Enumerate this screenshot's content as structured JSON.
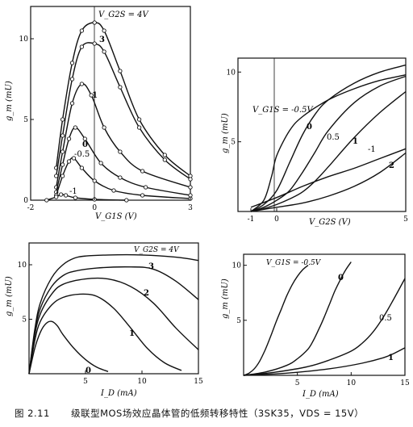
{
  "caption": {
    "figure_no": "图 2.11",
    "text": "级联型MOS场效应晶体管的低频转移特性（3SK35，VDS = 15V）"
  },
  "chart_data": [
    {
      "type": "line",
      "panel": "top-left",
      "xlabel": "V_G1S (V)",
      "ylabel": "g_m (mU)",
      "xlim": [
        -2,
        3
      ],
      "ylim": [
        0,
        12
      ],
      "xticks": [
        "-2",
        "0",
        "3"
      ],
      "yticks": [
        "0",
        "5",
        "10"
      ],
      "vline_x": 0,
      "series": [
        {
          "name": "V_G2S = 4V",
          "points": [
            [
              -1.2,
              2
            ],
            [
              -1.0,
              5
            ],
            [
              -0.7,
              8.5
            ],
            [
              -0.4,
              10.5
            ],
            [
              0,
              11
            ],
            [
              0.3,
              10.5
            ],
            [
              0.8,
              8
            ],
            [
              1.4,
              5
            ],
            [
              2.2,
              2.8
            ],
            [
              3,
              1.5
            ]
          ]
        },
        {
          "name": "3",
          "points": [
            [
              -1.2,
              1.5
            ],
            [
              -1.0,
              4
            ],
            [
              -0.7,
              7.5
            ],
            [
              -0.4,
              9.5
            ],
            [
              0,
              9.7
            ],
            [
              0.3,
              9.2
            ],
            [
              0.8,
              7
            ],
            [
              1.4,
              4.5
            ],
            [
              2.2,
              2.5
            ],
            [
              3,
              1.3
            ]
          ]
        },
        {
          "name": "1",
          "points": [
            [
              -1.2,
              0.8
            ],
            [
              -1.0,
              3
            ],
            [
              -0.7,
              6
            ],
            [
              -0.4,
              7.2
            ],
            [
              -0.1,
              6.5
            ],
            [
              0.3,
              4.5
            ],
            [
              0.8,
              3
            ],
            [
              1.5,
              1.8
            ],
            [
              3,
              0.8
            ]
          ]
        },
        {
          "name": "0",
          "points": [
            [
              -1.2,
              0.5
            ],
            [
              -1.0,
              2.2
            ],
            [
              -0.8,
              3.8
            ],
            [
              -0.6,
              4.5
            ],
            [
              -0.3,
              3.8
            ],
            [
              0.2,
              2.3
            ],
            [
              0.8,
              1.4
            ],
            [
              1.6,
              0.8
            ],
            [
              3,
              0.3
            ]
          ]
        },
        {
          "name": "-0.5",
          "points": [
            [
              -1.2,
              0.3
            ],
            [
              -1.0,
              1.5
            ],
            [
              -0.8,
              2.4
            ],
            [
              -0.65,
              2.6
            ],
            [
              -0.4,
              2
            ],
            [
              0,
              1.2
            ],
            [
              0.6,
              0.6
            ],
            [
              1.5,
              0.3
            ],
            [
              3,
              0.1
            ]
          ]
        },
        {
          "name": "-1",
          "points": [
            [
              -1.5,
              0
            ],
            [
              -1.2,
              0.2
            ],
            [
              -1.05,
              0.35
            ],
            [
              -0.9,
              0.3
            ],
            [
              -0.6,
              0.15
            ],
            [
              0,
              0.05
            ],
            [
              1,
              0
            ]
          ]
        }
      ]
    },
    {
      "type": "line",
      "panel": "top-right",
      "xlabel": "V_G2S (V)",
      "ylabel": "g_m (mU)",
      "xlim": [
        -1.5,
        5
      ],
      "ylim": [
        0,
        11
      ],
      "xticks": [
        "-1",
        "0",
        "5"
      ],
      "yticks": [
        "5",
        "10"
      ],
      "vline_x": 0,
      "series": [
        {
          "name": "V_G1S = -0.5V",
          "points": [
            [
              -1,
              0
            ],
            [
              -0.5,
              0.8
            ],
            [
              -0.2,
              2.5
            ],
            [
              0,
              4
            ],
            [
              0.5,
              5.8
            ],
            [
              1,
              6.8
            ],
            [
              2,
              8
            ],
            [
              3,
              8.8
            ],
            [
              4,
              9.4
            ],
            [
              5,
              9.8
            ]
          ]
        },
        {
          "name": "0",
          "points": [
            [
              -1,
              0
            ],
            [
              -0.5,
              0.5
            ],
            [
              0,
              1.5
            ],
            [
              0.5,
              3.5
            ],
            [
              1,
              5.5
            ],
            [
              1.5,
              7
            ],
            [
              2,
              8
            ],
            [
              3,
              9.2
            ],
            [
              4,
              10
            ],
            [
              5,
              10.5
            ]
          ]
        },
        {
          "name": "0.5",
          "points": [
            [
              -1,
              0
            ],
            [
              -0.5,
              0.3
            ],
            [
              0,
              0.8
            ],
            [
              0.5,
              1.5
            ],
            [
              1,
              2.8
            ],
            [
              1.5,
              4.3
            ],
            [
              2,
              5.8
            ],
            [
              3,
              7.8
            ],
            [
              4,
              9
            ],
            [
              5,
              9.7
            ]
          ]
        },
        {
          "name": "1",
          "points": [
            [
              -1,
              0
            ],
            [
              -0.5,
              0.2
            ],
            [
              0,
              0.5
            ],
            [
              0.5,
              0.9
            ],
            [
              1,
              1.4
            ],
            [
              1.5,
              2.2
            ],
            [
              2,
              3.2
            ],
            [
              3,
              5.3
            ],
            [
              4,
              7.1
            ],
            [
              5,
              8.6
            ]
          ]
        },
        {
          "name": "-1",
          "points": [
            [
              -1,
              0.3
            ],
            [
              0,
              1
            ],
            [
              1,
              1.8
            ],
            [
              2,
              2.5
            ],
            [
              3,
              3.1
            ],
            [
              4,
              3.8
            ],
            [
              5,
              4.5
            ]
          ]
        },
        {
          "name": "2",
          "points": [
            [
              -1,
              0
            ],
            [
              0,
              0.3
            ],
            [
              1,
              0.6
            ],
            [
              2,
              1.1
            ],
            [
              3,
              1.8
            ],
            [
              4,
              2.8
            ],
            [
              5,
              4.2
            ]
          ]
        }
      ]
    },
    {
      "type": "line",
      "panel": "bottom-left",
      "xlabel": "I_D (mA)",
      "ylabel": "g_m (mU)",
      "xlim": [
        0,
        15
      ],
      "ylim": [
        0,
        12
      ],
      "xticks": [
        "5",
        "10",
        "15"
      ],
      "yticks": [
        "5",
        "10"
      ],
      "series": [
        {
          "name": "V_G2S = 4V",
          "points": [
            [
              0,
              0
            ],
            [
              0.5,
              4
            ],
            [
              1,
              6.5
            ],
            [
              2,
              8.8
            ],
            [
              3,
              10
            ],
            [
              4,
              10.6
            ],
            [
              5,
              10.8
            ],
            [
              7,
              10.9
            ],
            [
              10,
              10.9
            ],
            [
              13,
              10.7
            ],
            [
              15,
              10.4
            ]
          ]
        },
        {
          "name": "3",
          "points": [
            [
              0,
              0
            ],
            [
              0.5,
              3.8
            ],
            [
              1,
              6
            ],
            [
              2,
              8
            ],
            [
              3,
              9
            ],
            [
              4,
              9.4
            ],
            [
              6,
              9.7
            ],
            [
              9,
              9.8
            ],
            [
              11,
              9.6
            ],
            [
              13,
              8.5
            ],
            [
              15,
              6.8
            ]
          ]
        },
        {
          "name": "2",
          "points": [
            [
              0,
              0
            ],
            [
              0.5,
              3.5
            ],
            [
              1,
              5.5
            ],
            [
              2,
              7.3
            ],
            [
              3,
              8.2
            ],
            [
              5,
              8.7
            ],
            [
              7,
              8.7
            ],
            [
              9,
              8
            ],
            [
              11,
              6.5
            ],
            [
              13,
              4.2
            ],
            [
              15,
              2.2
            ]
          ]
        },
        {
          "name": "1",
          "points": [
            [
              0,
              0
            ],
            [
              0.5,
              3
            ],
            [
              1,
              4.8
            ],
            [
              2,
              6.3
            ],
            [
              3,
              7
            ],
            [
              4.5,
              7.3
            ],
            [
              6,
              7.1
            ],
            [
              7.5,
              6
            ],
            [
              9,
              4.2
            ],
            [
              10.5,
              2.3
            ],
            [
              12,
              1
            ],
            [
              13.5,
              0.3
            ]
          ]
        },
        {
          "name": "0",
          "points": [
            [
              0,
              0
            ],
            [
              0.5,
              2.3
            ],
            [
              1,
              3.8
            ],
            [
              1.5,
              4.6
            ],
            [
              2,
              4.8
            ],
            [
              2.5,
              4.4
            ],
            [
              3,
              3.6
            ],
            [
              4,
              2.3
            ],
            [
              5,
              1.3
            ],
            [
              6,
              0.6
            ],
            [
              7,
              0.2
            ]
          ]
        }
      ]
    },
    {
      "type": "line",
      "panel": "bottom-right",
      "xlabel": "I_D (mA)",
      "ylabel": "g_m (mU)",
      "xlim": [
        0,
        15
      ],
      "ylim": [
        0,
        11
      ],
      "xticks": [
        "5",
        "10",
        "15"
      ],
      "yticks": [
        "5",
        "10"
      ],
      "series": [
        {
          "name": "V_G1S = -0.5V",
          "points": [
            [
              0,
              0
            ],
            [
              0.5,
              0.2
            ],
            [
              1,
              0.6
            ],
            [
              1.5,
              1.3
            ],
            [
              2,
              2.3
            ],
            [
              2.5,
              3.5
            ],
            [
              3,
              4.8
            ],
            [
              3.5,
              6
            ],
            [
              4,
              7.2
            ],
            [
              4.5,
              8.2
            ],
            [
              5,
              9
            ],
            [
              5.5,
              9.6
            ],
            [
              6,
              10
            ]
          ]
        },
        {
          "name": "0",
          "points": [
            [
              0,
              0
            ],
            [
              2,
              0.3
            ],
            [
              4,
              0.9
            ],
            [
              5,
              1.5
            ],
            [
              6,
              2.4
            ],
            [
              6.5,
              3.2
            ],
            [
              7,
              4.2
            ],
            [
              7.5,
              5.3
            ],
            [
              8,
              6.5
            ],
            [
              8.5,
              7.7
            ],
            [
              9,
              8.7
            ],
            [
              9.5,
              9.6
            ],
            [
              10,
              10.3
            ]
          ]
        },
        {
          "name": "0.5",
          "points": [
            [
              0,
              0
            ],
            [
              3,
              0.3
            ],
            [
              6,
              0.8
            ],
            [
              8,
              1.4
            ],
            [
              10,
              2.2
            ],
            [
              11,
              2.9
            ],
            [
              12,
              3.9
            ],
            [
              13,
              5.3
            ],
            [
              14,
              7
            ],
            [
              15,
              8.8
            ]
          ]
        },
        {
          "name": "1",
          "points": [
            [
              0,
              0
            ],
            [
              4,
              0.2
            ],
            [
              8,
              0.6
            ],
            [
              11,
              1.1
            ],
            [
              13,
              1.6
            ],
            [
              14,
              2
            ],
            [
              15,
              2.5
            ]
          ]
        }
      ]
    }
  ],
  "labels": {
    "tl": {
      "vg2s": "V_G2S = 4V",
      "s3": "3",
      "s1": "1",
      "s0": "0",
      "sm05": "-0.5",
      "sm1": "-1",
      "xlabel": "V_G1S (V)",
      "ylabel": "g_m (mU)"
    },
    "tr": {
      "vg1s": "V_G1S = -0.5V",
      "s0": "0",
      "s05": "0.5",
      "s1": "1",
      "sm1": "-1",
      "s2": "2",
      "xlabel": "V_G2S (V)",
      "ylabel": "g_m (mU)"
    },
    "bl": {
      "vg2s": "V_G2S = 4V",
      "s3": "3",
      "s2": "2",
      "s1": "1",
      "s0": "0",
      "xlabel": "I_D (mA)",
      "ylabel": "g_m (mU)"
    },
    "br": {
      "vg1s": "V_G1S = -0.5V",
      "s0": "0",
      "s05": "0.5",
      "s1": "1",
      "xlabel": "I_D (mA)",
      "ylabel": "g_m (mU)"
    }
  }
}
